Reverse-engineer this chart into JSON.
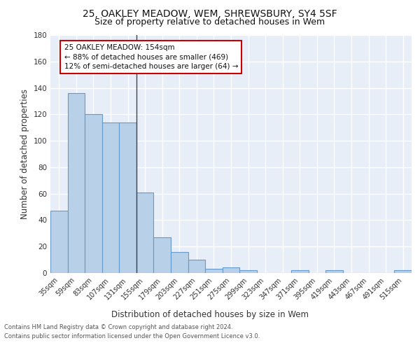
{
  "title1": "25, OAKLEY MEADOW, WEM, SHREWSBURY, SY4 5SF",
  "title2": "Size of property relative to detached houses in Wem",
  "xlabel": "Distribution of detached houses by size in Wem",
  "ylabel": "Number of detached properties",
  "categories": [
    "35sqm",
    "59sqm",
    "83sqm",
    "107sqm",
    "131sqm",
    "155sqm",
    "179sqm",
    "203sqm",
    "227sqm",
    "251sqm",
    "275sqm",
    "299sqm",
    "323sqm",
    "347sqm",
    "371sqm",
    "395sqm",
    "419sqm",
    "443sqm",
    "467sqm",
    "491sqm",
    "515sqm"
  ],
  "values": [
    47,
    136,
    120,
    114,
    114,
    61,
    27,
    16,
    10,
    3,
    4,
    2,
    0,
    0,
    2,
    0,
    2,
    0,
    0,
    0,
    2
  ],
  "bar_color": "#b8d0e8",
  "bar_edge_color": "#6699cc",
  "bg_color": "#e8eef8",
  "annotation_text": "25 OAKLEY MEADOW: 154sqm\n← 88% of detached houses are smaller (469)\n12% of semi-detached houses are larger (64) →",
  "annotation_box_color": "#ffffff",
  "annotation_box_edge_color": "#cc0000",
  "ylim": [
    0,
    180
  ],
  "yticks": [
    0,
    20,
    40,
    60,
    80,
    100,
    120,
    140,
    160,
    180
  ],
  "footer1": "Contains HM Land Registry data © Crown copyright and database right 2024.",
  "footer2": "Contains public sector information licensed under the Open Government Licence v3.0.",
  "title1_fontsize": 10,
  "title2_fontsize": 9,
  "ylabel_fontsize": 8.5,
  "xlabel_fontsize": 8.5,
  "tick_fontsize": 7,
  "footer_fontsize": 6,
  "ann_fontsize": 7.5
}
